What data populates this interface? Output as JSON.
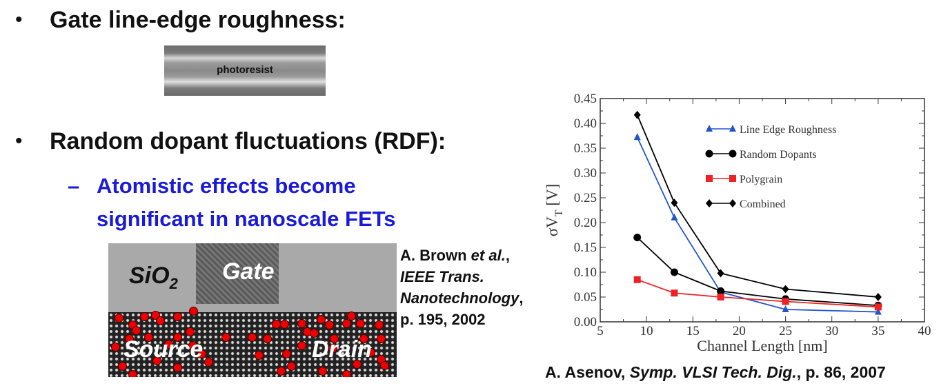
{
  "slide": {
    "bullet1": "Gate line-edge roughness:",
    "photoresist_label": "photoresist",
    "bullet2": "Random dopant fluctuations (RDF):",
    "sub_dash": "–",
    "sub_line1": "Atomistic effects become",
    "sub_line2": "significant in nanoscale FETs",
    "tem_labels": {
      "oxide": "SiO",
      "oxide_sub": "2",
      "gate": "Gate",
      "source": "Source",
      "drain": "Drain"
    },
    "ref1": {
      "line1_a": "A. Brown ",
      "line1_b": "et al.",
      "line1_c": ",",
      "line2": "IEEE Trans.",
      "line3": "Nanotechnology",
      "line3_c": ",",
      "line4": "p. 195, 2002"
    },
    "ref2": {
      "a": "A. Asenov, ",
      "b": "Symp. VLSI Tech. Dig.",
      "c": ", p. 86, 2007"
    },
    "bullet_glyph": "•"
  },
  "chart_data": {
    "type": "line",
    "xlabel": "Channel Length [nm]",
    "ylabel": "σV",
    "ylabel_sub": "T",
    "ylabel_unit": " [V]",
    "xlim": [
      5,
      40
    ],
    "ylim": [
      0,
      0.45
    ],
    "xticks": [
      "5",
      "10",
      "15",
      "20",
      "25",
      "30",
      "35",
      "40"
    ],
    "yticks": [
      "0.00",
      "0.05",
      "0.10",
      "0.15",
      "0.20",
      "0.25",
      "0.30",
      "0.35",
      "0.40",
      "0.45"
    ],
    "grid": false,
    "legend_position": "top-right",
    "x": [
      9,
      13,
      18,
      25,
      35
    ],
    "series": [
      {
        "name": "Line Edge Roughness",
        "values": [
          0.372,
          0.21,
          0.06,
          0.025,
          0.02
        ],
        "color": "#2255cc",
        "marker": "triangle"
      },
      {
        "name": "Random Dopants",
        "values": [
          0.17,
          0.1,
          0.062,
          0.046,
          0.033
        ],
        "color": "#000000",
        "marker": "circle"
      },
      {
        "name": "Polygrain",
        "values": [
          0.085,
          0.058,
          0.05,
          0.041,
          0.03
        ],
        "color": "#ee2222",
        "marker": "square"
      },
      {
        "name": "Combined",
        "values": [
          0.417,
          0.24,
          0.098,
          0.066,
          0.05
        ],
        "color": "#000000",
        "marker": "diamond"
      }
    ]
  }
}
